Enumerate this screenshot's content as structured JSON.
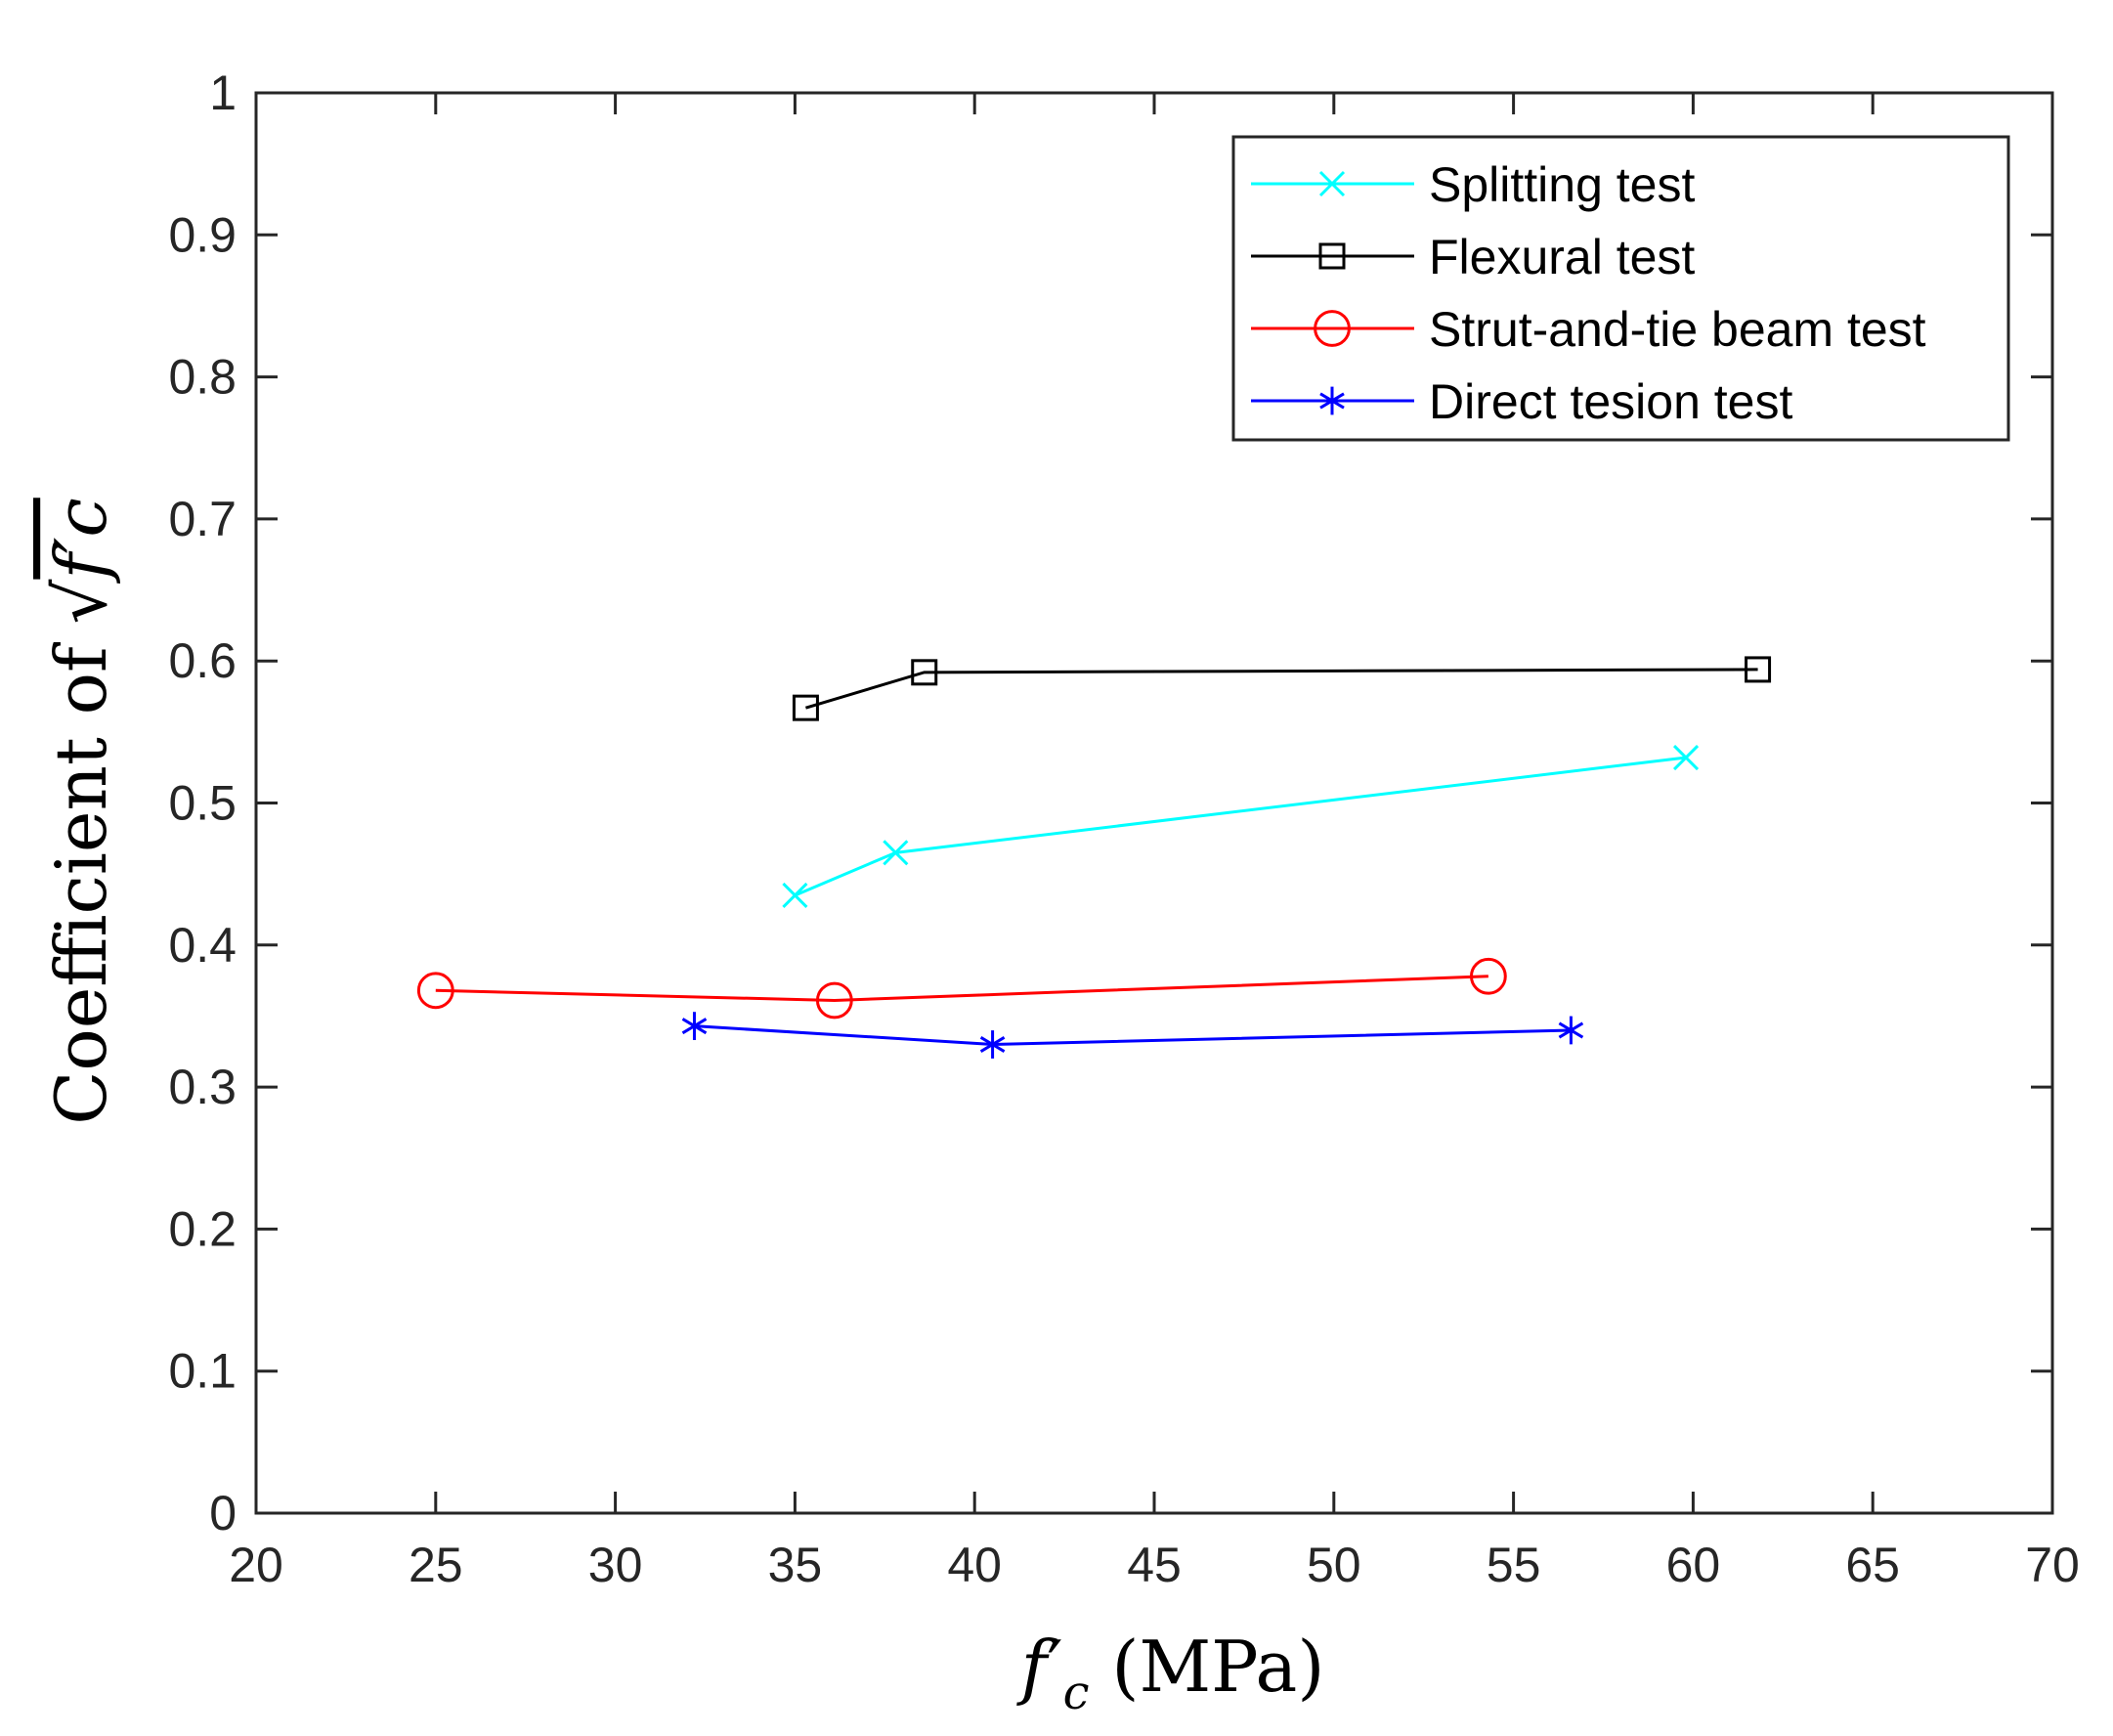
{
  "chart_data": {
    "type": "line",
    "title": "",
    "xlabel": {
      "main": "f",
      "prime": "′",
      "subscript": "c",
      "unit": " (MPa)"
    },
    "ylabel": {
      "prefix": "Coefficient of ",
      "radical": "√",
      "radicand": "f′c"
    },
    "xlim": [
      20,
      70
    ],
    "ylim": [
      0,
      1
    ],
    "x_ticks": [
      20,
      25,
      30,
      35,
      40,
      45,
      50,
      55,
      60,
      65,
      70
    ],
    "y_ticks": [
      0,
      0.1,
      0.2,
      0.3,
      0.4,
      0.5,
      0.6,
      0.7,
      0.8,
      0.9,
      1
    ],
    "x_tick_labels": [
      "20",
      "25",
      "30",
      "35",
      "40",
      "45",
      "50",
      "55",
      "60",
      "65",
      "70"
    ],
    "y_tick_labels": [
      "0",
      "0.1",
      "0.2",
      "0.3",
      "0.4",
      "0.5",
      "0.6",
      "0.7",
      "0.8",
      "0.9",
      "1"
    ],
    "grid": false,
    "legend_position": "top-right",
    "series": [
      {
        "name": "Splitting test",
        "color": "#00FFFF",
        "marker": "x",
        "x": [
          35.0,
          37.8,
          59.8
        ],
        "y": [
          0.435,
          0.465,
          0.532
        ]
      },
      {
        "name": "Flexural test",
        "color": "#000000",
        "marker": "square",
        "x": [
          35.3,
          38.6,
          61.8
        ],
        "y": [
          0.567,
          0.592,
          0.594
        ]
      },
      {
        "name": "Strut-and-tie beam test",
        "color": "#FF0000",
        "marker": "circle",
        "x": [
          25.0,
          36.1,
          54.3
        ],
        "y": [
          0.368,
          0.361,
          0.378
        ]
      },
      {
        "name": "Direct tesion test",
        "color": "#0000FF",
        "marker": "asterisk",
        "x": [
          32.2,
          40.5,
          56.6
        ],
        "y": [
          0.343,
          0.33,
          0.34
        ]
      }
    ]
  }
}
